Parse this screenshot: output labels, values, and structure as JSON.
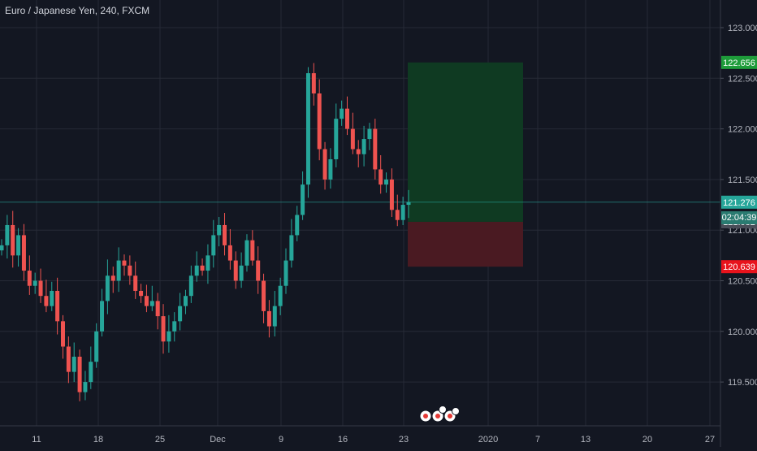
{
  "chart_data": {
    "type": "candlestick",
    "title": "Euro / Japanese Yen, 240, FXCM",
    "x_ticks": [
      "11",
      "18",
      "25",
      "Dec",
      "9",
      "16",
      "23",
      "2020",
      "7",
      "13",
      "20",
      "27"
    ],
    "y_ticks": [
      "123.000",
      "122.500",
      "122.000",
      "121.500",
      "121.000",
      "120.500",
      "120.000",
      "119.500"
    ],
    "ylim": [
      119.25,
      123.25
    ],
    "price_tags": {
      "target": "122.656",
      "last": "121.276",
      "entry": "121.082",
      "stop": "120.639"
    },
    "last_time": "02:04:39",
    "position": {
      "type": "long",
      "entry": 121.082,
      "target": 122.656,
      "stop": 120.639
    },
    "closes": [
      120.85,
      121.05,
      120.75,
      120.95,
      120.6,
      120.45,
      120.5,
      120.35,
      120.25,
      120.4,
      120.1,
      119.85,
      119.6,
      119.75,
      119.4,
      119.5,
      119.7,
      120.0,
      120.3,
      120.55,
      120.5,
      120.7,
      120.65,
      120.55,
      120.4,
      120.35,
      120.25,
      120.3,
      120.15,
      119.9,
      120.0,
      120.1,
      120.25,
      120.35,
      120.55,
      120.65,
      120.6,
      120.75,
      120.95,
      121.05,
      120.85,
      120.7,
      120.5,
      120.65,
      120.9,
      120.7,
      120.5,
      120.2,
      120.05,
      120.25,
      120.45,
      120.7,
      120.95,
      121.15,
      121.45,
      122.55,
      122.35,
      121.8,
      121.5,
      121.7,
      122.1,
      122.2,
      122.0,
      121.8,
      121.75,
      121.9,
      122.0,
      121.6,
      121.45,
      121.5,
      121.2,
      121.1,
      121.25,
      121.276
    ]
  }
}
